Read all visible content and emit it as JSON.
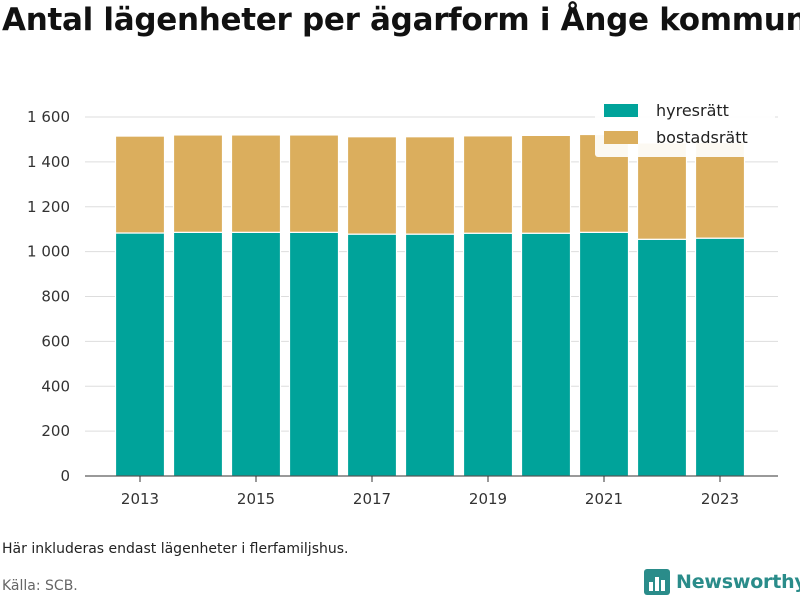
{
  "title": "Antal lägenheter per ägarform i Ånge kommun",
  "note": "Här inkluderas endast lägenheter i flerfamiljshus.",
  "source": "Källa: SCB.",
  "brand": "Newsworthy",
  "colors": {
    "hyresratt": "#00a39a",
    "bostadsratt": "#dbae5d",
    "grid": "#dddddd",
    "brand": "#2a8c8a"
  },
  "chart_data": {
    "type": "bar",
    "stacked": true,
    "categories": [
      "2013",
      "2014",
      "2015",
      "2016",
      "2017",
      "2018",
      "2019",
      "2020",
      "2021",
      "2022",
      "2023"
    ],
    "x_tick_labels": [
      "2013",
      "2015",
      "2017",
      "2019",
      "2021",
      "2023"
    ],
    "series": [
      {
        "name": "hyresrätt",
        "values": [
          1083,
          1086,
          1086,
          1086,
          1078,
          1078,
          1082,
          1082,
          1086,
          1055,
          1060
        ]
      },
      {
        "name": "bostadsrätt",
        "values": [
          432,
          434,
          434,
          434,
          434,
          434,
          434,
          436,
          436,
          430,
          427
        ]
      }
    ],
    "ylim": [
      0,
      1600
    ],
    "yticks": [
      0,
      200,
      400,
      600,
      800,
      1000,
      1200,
      1400,
      1600
    ],
    "ytick_labels": [
      "0",
      "200",
      "400",
      "600",
      "800",
      "1 000",
      "1 200",
      "1 400",
      "1 600"
    ],
    "xlabel": "",
    "ylabel": "",
    "grid": true,
    "legend_position": "top-right"
  }
}
